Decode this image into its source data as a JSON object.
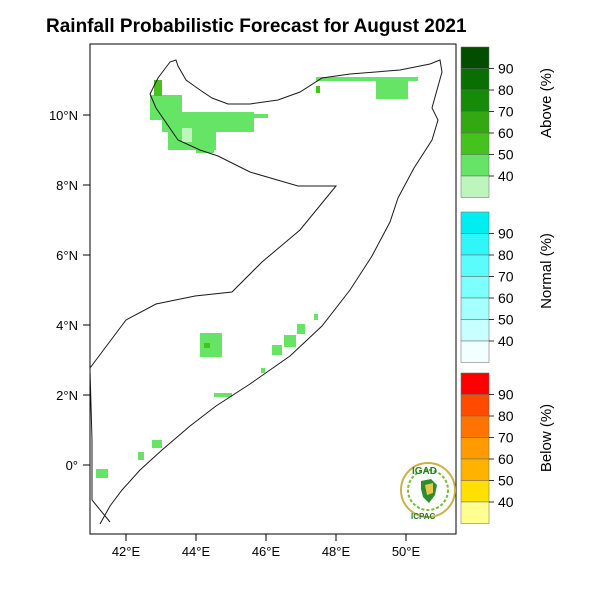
{
  "title": "Rainfall Probabilistic Forecast for August 2021",
  "map": {
    "lon_ticks": [
      "42°E",
      "44°E",
      "46°E",
      "48°E",
      "50°E"
    ],
    "lat_ticks": [
      "0°",
      "2°N",
      "4°N",
      "6°N",
      "8°N",
      "10°N"
    ],
    "colors": {
      "above": [
        "#bdf5bd",
        "#66e466",
        "#46c21f",
        "#33a812",
        "#168a09",
        "#0a6e05",
        "#034d00"
      ],
      "normal": [
        "#f2ffff",
        "#c8ffff",
        "#a6ffff",
        "#7dffff",
        "#5afcfc",
        "#30f7f7",
        "#00eef0"
      ],
      "below": [
        "#ffff91",
        "#ffe000",
        "#ffb200",
        "#ff9a00",
        "#ff7400",
        "#ff4a00",
        "#ff0000"
      ]
    }
  },
  "legend": {
    "above": {
      "title": "Above (%)",
      "labels": [
        "40",
        "50",
        "60",
        "70",
        "80",
        "90"
      ]
    },
    "normal": {
      "title": "Normal (%)",
      "labels": [
        "40",
        "50",
        "60",
        "70",
        "80",
        "90"
      ]
    },
    "below": {
      "title": "Below (%)",
      "labels": [
        "40",
        "50",
        "60",
        "70",
        "80",
        "90"
      ]
    }
  },
  "logo": {
    "top_text": "IGAD",
    "bottom_text": "ICPAC"
  }
}
